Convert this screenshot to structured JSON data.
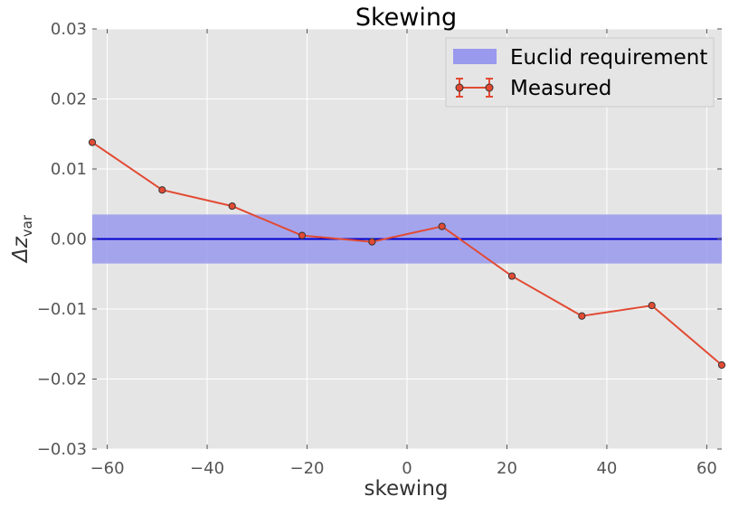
{
  "chart_data": {
    "type": "line",
    "title": "Skewing",
    "xlabel": "skewing",
    "ylabel_main": "Δz",
    "ylabel_sub": "var",
    "xlim": [
      -63,
      63
    ],
    "ylim": [
      -0.03,
      0.03
    ],
    "xticks": [
      -60,
      -40,
      -20,
      0,
      20,
      40,
      60
    ],
    "xtick_labels": [
      "−60",
      "−40",
      "−20",
      "0",
      "20",
      "40",
      "60"
    ],
    "yticks": [
      0.03,
      0.02,
      0.01,
      0.0,
      -0.01,
      -0.02,
      -0.03
    ],
    "ytick_labels": [
      "0.03",
      "0.02",
      "0.01",
      "0.00",
      "−0.01",
      "−0.02",
      "−0.03"
    ],
    "grid": true,
    "legend_position": "top-right",
    "series": [
      {
        "name": "Measured",
        "color": "#e24a33",
        "x": [
          -63,
          -49,
          -35,
          -21,
          -7,
          7,
          21,
          35,
          49,
          63
        ],
        "y": [
          0.0138,
          0.007,
          0.0047,
          0.0005,
          -0.0004,
          0.0018,
          -0.0053,
          -0.011,
          -0.0095,
          -0.018
        ]
      }
    ],
    "requirement_band": {
      "name": "Euclid requirement",
      "lower": -0.0035,
      "upper": 0.0035,
      "color": "#9999ee"
    },
    "zero_line_color": "#0000cc",
    "background_color": "#e5e5e5",
    "grid_color": "#ffffff"
  }
}
